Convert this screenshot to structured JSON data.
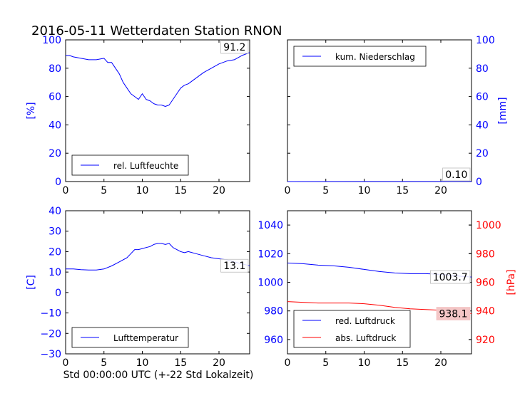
{
  "title": "2016-05-11 Wetterdaten Station RNON",
  "footer_xlabel": "Std 00:00:00 UTC (+-22 Std Lokalzeit)",
  "colors": {
    "blue": "#0000ff",
    "red": "#ff0000",
    "black": "#000000",
    "red_box_fill": "#f4c6c6"
  },
  "chart_data": [
    {
      "type": "line",
      "panel": "top-left",
      "xlim": [
        0,
        24
      ],
      "ylim": [
        0,
        100
      ],
      "xticks": [
        0,
        5,
        10,
        15,
        20
      ],
      "yticks": [
        0,
        20,
        40,
        60,
        80,
        100
      ],
      "ylabel": "[%]",
      "ylabel_side": "left",
      "legend_placement": "lower-center",
      "value_box": "91.2",
      "series": [
        {
          "name": "rel. Luftfeuchte",
          "color": "#0000ff",
          "x": [
            0,
            0.5,
            1,
            2,
            3,
            4,
            5,
            5.5,
            6,
            6.5,
            7,
            7.5,
            8,
            8.5,
            9,
            9.5,
            10,
            10.5,
            11,
            11.5,
            12,
            12.5,
            13,
            13.5,
            14,
            14.5,
            15,
            15.5,
            16,
            17,
            18,
            19,
            20,
            21,
            22,
            23,
            24
          ],
          "y": [
            89,
            89,
            88,
            87,
            86,
            86,
            87,
            84,
            84,
            80,
            76,
            70,
            66,
            62,
            60,
            58,
            62,
            58,
            57,
            55,
            54,
            54,
            53,
            54,
            58,
            62,
            66,
            68,
            69,
            73,
            77,
            80,
            83,
            85,
            86,
            89,
            91
          ]
        }
      ]
    },
    {
      "type": "line",
      "panel": "top-right",
      "xlim": [
        0,
        24
      ],
      "ylim": [
        0,
        100
      ],
      "xticks": [
        0,
        5,
        10,
        15,
        20
      ],
      "yticks": [
        0,
        20,
        40,
        60,
        80,
        100
      ],
      "ylabel": "[mm]",
      "ylabel_side": "right",
      "legend_placement": "upper-left",
      "value_box": "0.10",
      "series": [
        {
          "name": "kum. Niederschlag",
          "color": "#0000ff",
          "x": [
            0,
            24
          ],
          "y": [
            0,
            0.1
          ]
        }
      ]
    },
    {
      "type": "line",
      "panel": "bottom-left",
      "xlim": [
        0,
        24
      ],
      "ylim": [
        -30,
        40
      ],
      "xticks": [
        0,
        5,
        10,
        15,
        20
      ],
      "yticks": [
        -30,
        -20,
        -10,
        0,
        10,
        20,
        30,
        40
      ],
      "ylabel": "[C]",
      "ylabel_side": "left",
      "legend_placement": "lower-center",
      "value_box": "13.1",
      "series": [
        {
          "name": "Lufttemperatur",
          "color": "#0000ff",
          "x": [
            0,
            1,
            2,
            3,
            4,
            5,
            6,
            7,
            8,
            8.5,
            9,
            9.5,
            10,
            10.5,
            11,
            11.5,
            12,
            12.5,
            13,
            13.5,
            14,
            14.5,
            15,
            15.5,
            16,
            17,
            18,
            19,
            20,
            21,
            22,
            23,
            24
          ],
          "y": [
            11.5,
            11.5,
            11.2,
            11,
            11,
            11.5,
            13,
            15,
            17,
            19,
            21,
            21,
            21.5,
            22,
            22.5,
            23.5,
            24,
            24,
            23.5,
            24,
            22,
            21,
            20,
            19.5,
            20,
            19,
            18,
            17,
            16.5,
            16,
            15,
            14,
            13.1
          ]
        }
      ]
    },
    {
      "type": "line",
      "panel": "bottom-right",
      "xlim": [
        0,
        24
      ],
      "ylim": [
        950,
        1050
      ],
      "xticks": [
        0,
        5,
        10,
        15,
        20
      ],
      "yticks": [
        960,
        980,
        1000,
        1020,
        1040
      ],
      "ylim_right": [
        910,
        1010
      ],
      "yticks_right": [
        920,
        940,
        960,
        980,
        1000
      ],
      "ylabel_right": "[hPa]",
      "legend_placement": "lower-left",
      "value_boxes": [
        "1003.7",
        "938.1"
      ],
      "series": [
        {
          "name": "red. Luftdruck",
          "color": "#0000ff",
          "axis": "left",
          "x": [
            0,
            2,
            4,
            6,
            8,
            10,
            12,
            14,
            16,
            18,
            20,
            22,
            24
          ],
          "y": [
            1013.5,
            1013,
            1012,
            1011.5,
            1010.5,
            1009,
            1007.5,
            1006.5,
            1006,
            1006,
            1005.5,
            1004.5,
            1003.7
          ]
        },
        {
          "name": "abs. Luftdruck",
          "color": "#ff0000",
          "axis": "right",
          "x": [
            0,
            2,
            4,
            6,
            8,
            10,
            12,
            14,
            16,
            18,
            20,
            22,
            24
          ],
          "y": [
            946.5,
            946,
            945.5,
            945.5,
            945.5,
            945,
            944,
            942.5,
            941.5,
            941,
            940.5,
            939.5,
            938.1
          ]
        }
      ]
    }
  ]
}
